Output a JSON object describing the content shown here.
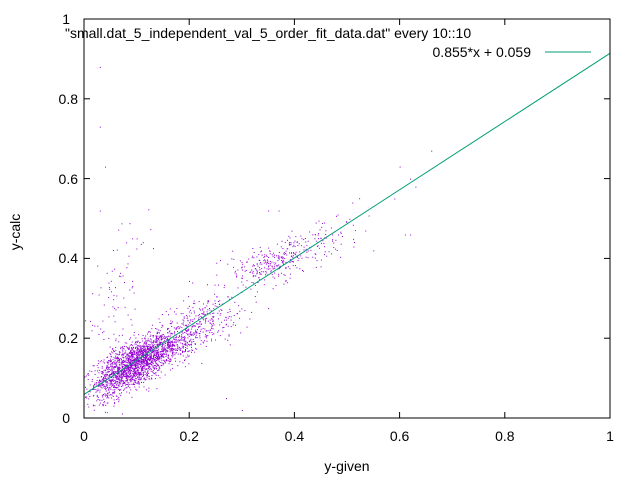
{
  "chart_data": {
    "type": "scatter",
    "title": "",
    "xlabel": "y-given",
    "ylabel": "y-calc",
    "xlim": [
      0,
      1
    ],
    "ylim": [
      0,
      1
    ],
    "x_ticks": [
      "0",
      "0.2",
      "0.4",
      "0.6",
      "0.8",
      "1"
    ],
    "y_ticks": [
      "0",
      "0.2",
      "0.4",
      "0.6",
      "0.8",
      "1"
    ],
    "grid": false,
    "legend_position": "top-right",
    "series": [
      {
        "name": "\"small.dat_5_independent_val_5_order_fit_data.dat\" every 10::10",
        "kind": "points",
        "color": "#9400d3",
        "clusters": [
          {
            "cx": 0.09,
            "cy": 0.13,
            "sx": 0.035,
            "sy": 0.035,
            "n": 1300
          },
          {
            "cx": 0.14,
            "cy": 0.17,
            "sx": 0.04,
            "sy": 0.03,
            "n": 700
          },
          {
            "cx": 0.22,
            "cy": 0.24,
            "sx": 0.05,
            "sy": 0.04,
            "n": 300
          },
          {
            "cx": 0.36,
            "cy": 0.39,
            "sx": 0.05,
            "sy": 0.03,
            "n": 300
          },
          {
            "cx": 0.05,
            "cy": 0.1,
            "sx": 0.02,
            "sy": 0.05,
            "n": 150
          },
          {
            "cx": 0.06,
            "cy": 0.3,
            "sx": 0.03,
            "sy": 0.08,
            "n": 80
          },
          {
            "cx": 0.45,
            "cy": 0.45,
            "sx": 0.04,
            "sy": 0.03,
            "n": 60
          }
        ],
        "outliers": [
          [
            0.03,
            0.88
          ],
          [
            0.03,
            0.73
          ],
          [
            0.04,
            0.63
          ],
          [
            0.03,
            0.52
          ],
          [
            0.66,
            0.67
          ],
          [
            0.63,
            0.58
          ],
          [
            0.62,
            0.6
          ],
          [
            0.6,
            0.63
          ],
          [
            0.59,
            0.55
          ],
          [
            0.55,
            0.42
          ],
          [
            0.61,
            0.46
          ],
          [
            0.62,
            0.46
          ],
          [
            0.51,
            0.54
          ],
          [
            0.35,
            0.52
          ],
          [
            0.37,
            0.52
          ],
          [
            0.28,
            0.4
          ],
          [
            0.27,
            0.05
          ],
          [
            0.3,
            0.02
          ],
          [
            0.1,
            0.45
          ],
          [
            0.08,
            0.44
          ]
        ]
      },
      {
        "name": "0.855*x + 0.059",
        "kind": "line",
        "color": "#009e73",
        "slope": 0.855,
        "intercept": 0.059
      }
    ]
  }
}
